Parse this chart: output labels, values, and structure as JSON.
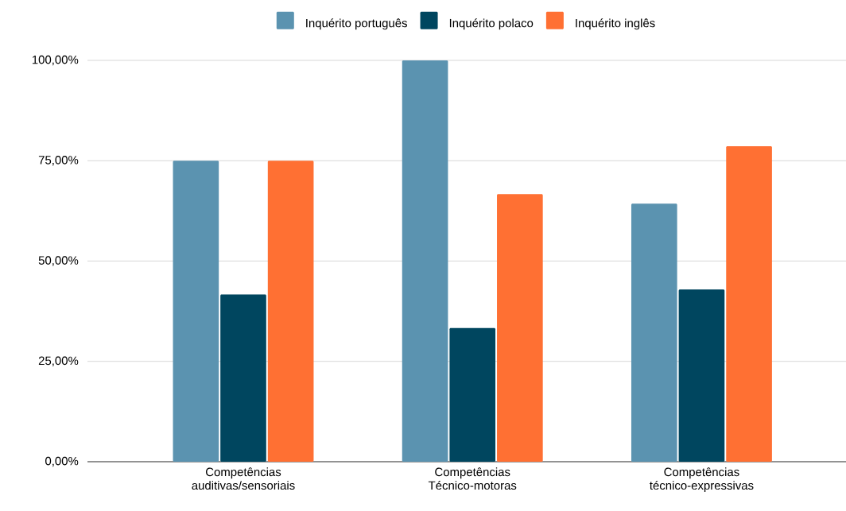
{
  "chart_data": {
    "type": "bar",
    "categories": [
      "Competências auditivas/sensoriais",
      "Competências Técnico-motoras",
      "Competências técnico-expressivas"
    ],
    "series": [
      {
        "name": "Inquérito português",
        "color": "#5b93b0",
        "values": [
          75,
          100,
          64.3
        ]
      },
      {
        "name": "Inquérito polaco",
        "color": "#00465f",
        "values": [
          41.7,
          33.3,
          42.9
        ]
      },
      {
        "name": "Inquérito inglês",
        "color": "#ff7033",
        "values": [
          75,
          66.7,
          78.6
        ]
      }
    ],
    "ylim": [
      0,
      100
    ],
    "yticks": [
      {
        "value": 0,
        "label": "0,00%"
      },
      {
        "value": 25,
        "label": "25,00%"
      },
      {
        "value": 50,
        "label": "50,00%"
      },
      {
        "value": 75,
        "label": "75,00%"
      },
      {
        "value": 100,
        "label": "100,00%"
      }
    ],
    "grid": "y",
    "legend": "top"
  }
}
